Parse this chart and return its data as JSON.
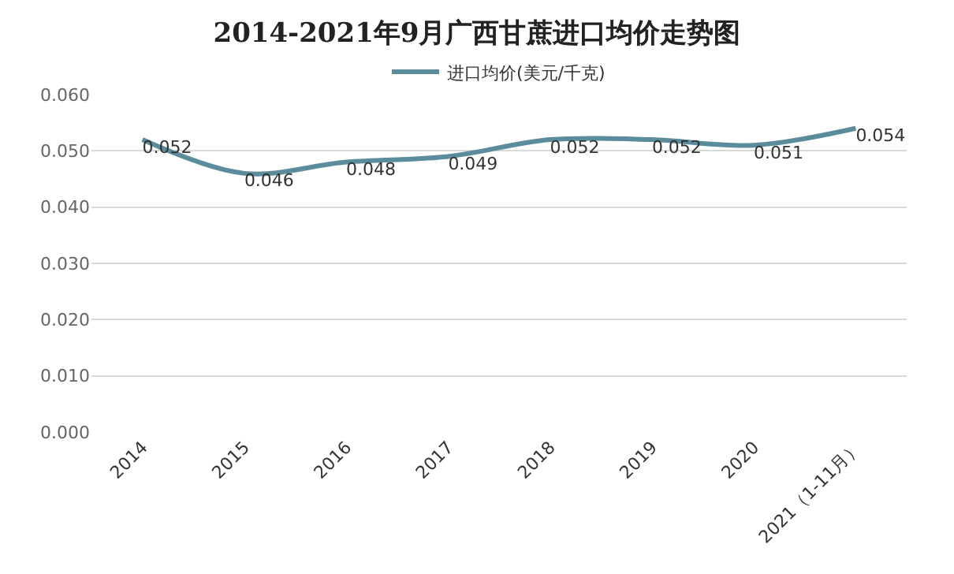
{
  "chart_data": {
    "type": "line",
    "title": "2014-2021年9月广西甘蔗进口均价走势图",
    "categories": [
      "2014",
      "2015",
      "2016",
      "2017",
      "2018",
      "2019",
      "2020",
      "2021（1-11月）"
    ],
    "series": [
      {
        "name": "进口均价(美元/千克)",
        "color": "#5b8c9b",
        "values": [
          0.052,
          0.046,
          0.048,
          0.049,
          0.052,
          0.052,
          0.051,
          0.054
        ]
      }
    ],
    "ylim": [
      0,
      0.06
    ],
    "yticks": [
      {
        "value": 0,
        "label": "0.000"
      },
      {
        "value": 0.01,
        "label": "0.010"
      },
      {
        "value": 0.02,
        "label": "0.020"
      },
      {
        "value": 0.03,
        "label": "0.030"
      },
      {
        "value": 0.04,
        "label": "0.040"
      },
      {
        "value": 0.05,
        "label": "0.050"
      },
      {
        "value": 0.06,
        "label": "0.060"
      }
    ],
    "grid": "y",
    "legend": "top",
    "data_labels": true,
    "marker": "none",
    "line_style": "solid"
  }
}
